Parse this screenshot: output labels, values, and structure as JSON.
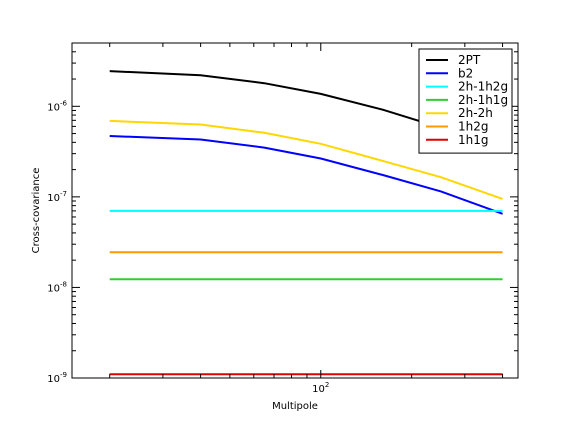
{
  "chart_data": {
    "type": "line",
    "title": "",
    "xlabel": "Multipole",
    "ylabel": "Cross-covariance",
    "xscale": "log",
    "yscale": "log",
    "xlim": [
      15,
      450
    ],
    "ylim": [
      1e-09,
      5e-06
    ],
    "x_ticks": [
      {
        "value": 100,
        "base": "10",
        "exp": "2"
      }
    ],
    "y_ticks": [
      {
        "value": 1e-09,
        "base": "10",
        "exp": "-9"
      },
      {
        "value": 1e-08,
        "base": "10",
        "exp": "-8"
      },
      {
        "value": 1e-07,
        "base": "10",
        "exp": "-7"
      },
      {
        "value": 1e-06,
        "base": "10",
        "exp": "-6"
      }
    ],
    "grid": false,
    "legend_position": "top-right",
    "x": [
      20,
      40,
      65,
      100,
      160,
      250,
      400
    ],
    "series": [
      {
        "name": "2PT",
        "color": "#000000",
        "values": [
          2.45e-06,
          2.2e-06,
          1.8e-06,
          1.37e-06,
          9.2e-07,
          5.8e-07,
          3.4e-07
        ]
      },
      {
        "name": "b2",
        "color": "#0000ff",
        "values": [
          4.7e-07,
          4.3e-07,
          3.5e-07,
          2.65e-07,
          1.75e-07,
          1.15e-07,
          6.5e-08
        ]
      },
      {
        "name": "2h-1h2g",
        "color": "#00ffff",
        "values": [
          7e-08,
          7e-08,
          7e-08,
          7e-08,
          7e-08,
          7e-08,
          7e-08
        ]
      },
      {
        "name": "2h-1h1g",
        "color": "#33cc33",
        "values": [
          1.23e-08,
          1.23e-08,
          1.23e-08,
          1.23e-08,
          1.23e-08,
          1.23e-08,
          1.23e-08
        ]
      },
      {
        "name": "2h-2h",
        "color": "#ffd700",
        "values": [
          6.9e-07,
          6.3e-07,
          5.1e-07,
          3.85e-07,
          2.5e-07,
          1.65e-07,
          9.5e-08
        ]
      },
      {
        "name": "1h2g",
        "color": "#ff9900",
        "values": [
          2.45e-08,
          2.45e-08,
          2.45e-08,
          2.45e-08,
          2.45e-08,
          2.45e-08,
          2.45e-08
        ]
      },
      {
        "name": "1h1g",
        "color": "#dd0000",
        "values": [
          1.1e-09,
          1.1e-09,
          1.1e-09,
          1.1e-09,
          1.1e-09,
          1.1e-09,
          1.1e-09
        ]
      }
    ]
  }
}
